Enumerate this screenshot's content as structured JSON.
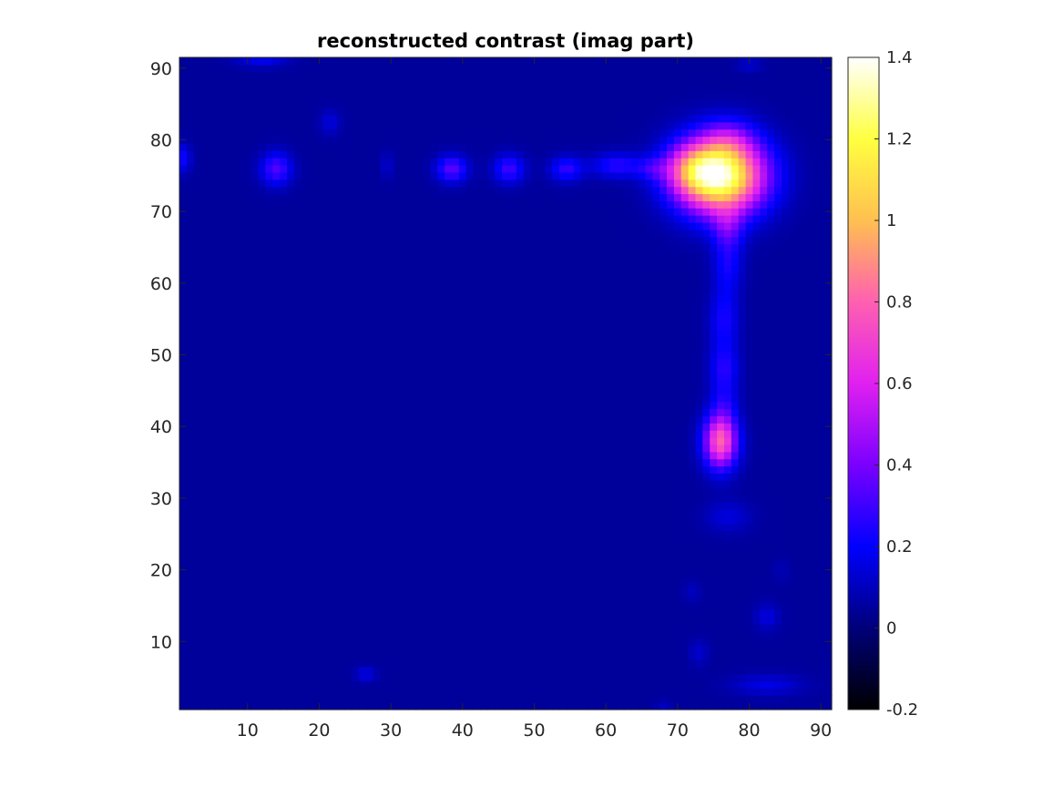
{
  "chart_data": {
    "type": "heatmap",
    "title": "reconstructed contrast (imag part)",
    "xlabel": "",
    "ylabel": "",
    "grid": false,
    "xlim": [
      0.5,
      91.5
    ],
    "ylim": [
      0.5,
      91.5
    ],
    "x_ticks": [
      10,
      20,
      30,
      40,
      50,
      60,
      70,
      80,
      90
    ],
    "y_ticks": [
      10,
      20,
      30,
      40,
      50,
      60,
      70,
      80,
      90
    ],
    "grid_size": 91,
    "colormap": "gnuplot2",
    "colormap_stops": [
      {
        "v": -0.2,
        "color": "#000000"
      },
      {
        "v": 0.0,
        "color": "#00007a"
      },
      {
        "v": 0.2,
        "color": "#0000ff"
      },
      {
        "v": 0.4,
        "color": "#7a00ff"
      },
      {
        "v": 0.6,
        "color": "#e020f0"
      },
      {
        "v": 0.8,
        "color": "#ff60b0"
      },
      {
        "v": 1.0,
        "color": "#ffc050"
      },
      {
        "v": 1.2,
        "color": "#ffff40"
      },
      {
        "v": 1.4,
        "color": "#ffffff"
      }
    ],
    "colorbar": {
      "limits": [
        -0.2,
        1.4
      ],
      "ticks": [
        -0.2,
        0,
        0.2,
        0.4,
        0.6,
        0.8,
        1,
        1.2,
        1.4
      ],
      "tick_labels": [
        "-0.2",
        "0",
        "0.2",
        "0.4",
        "0.6",
        "0.8",
        "1",
        "1.2",
        "1.4"
      ],
      "location": "right"
    },
    "background_value": 0.05,
    "features": [
      {
        "x": 76,
        "y": 75,
        "sx": 4.2,
        "sy": 3.6,
        "v": 1.3
      },
      {
        "x": 72,
        "y": 76,
        "sx": 2.6,
        "sy": 2.3,
        "v": 0.35
      },
      {
        "x": 77,
        "y": 80,
        "sx": 2.5,
        "sy": 2.0,
        "v": 0.2
      },
      {
        "x": 76,
        "y": 38,
        "sx": 1.6,
        "sy": 2.6,
        "v": 0.75
      },
      {
        "x": 76.5,
        "y": 48,
        "sx": 1.4,
        "sy": 2.5,
        "v": 0.2
      },
      {
        "x": 76.5,
        "y": 55,
        "sx": 1.4,
        "sy": 3.0,
        "v": 0.18
      },
      {
        "x": 77,
        "y": 63,
        "sx": 1.4,
        "sy": 3.0,
        "v": 0.18
      },
      {
        "x": 77,
        "y": 68,
        "sx": 1.5,
        "sy": 2.0,
        "v": 0.2
      },
      {
        "x": 76.5,
        "y": 43,
        "sx": 1.3,
        "sy": 2.0,
        "v": 0.12
      },
      {
        "x": 77,
        "y": 27.5,
        "sx": 2.2,
        "sy": 1.5,
        "v": 0.1
      },
      {
        "x": 14,
        "y": 76,
        "sx": 1.5,
        "sy": 1.6,
        "v": 0.28
      },
      {
        "x": 38.5,
        "y": 76,
        "sx": 1.5,
        "sy": 1.3,
        "v": 0.3
      },
      {
        "x": 46.5,
        "y": 76,
        "sx": 1.5,
        "sy": 1.4,
        "v": 0.25
      },
      {
        "x": 54.5,
        "y": 76,
        "sx": 1.6,
        "sy": 1.2,
        "v": 0.23
      },
      {
        "x": 61.5,
        "y": 76.5,
        "sx": 2.4,
        "sy": 1.2,
        "v": 0.21
      },
      {
        "x": 66.5,
        "y": 76,
        "sx": 1.6,
        "sy": 1.1,
        "v": 0.15
      },
      {
        "x": 0.8,
        "y": 77.5,
        "sx": 0.9,
        "sy": 1.4,
        "v": 0.18
      },
      {
        "x": 29.5,
        "y": 76.5,
        "sx": 0.6,
        "sy": 1.3,
        "v": 0.08
      },
      {
        "x": 21.5,
        "y": 82.5,
        "sx": 1.0,
        "sy": 1.2,
        "v": 0.1
      },
      {
        "x": 12,
        "y": 91,
        "sx": 2.5,
        "sy": 0.6,
        "v": 0.12
      },
      {
        "x": 80,
        "y": 90.5,
        "sx": 1.2,
        "sy": 0.7,
        "v": 0.08
      },
      {
        "x": 26.5,
        "y": 5.5,
        "sx": 1.0,
        "sy": 0.7,
        "v": 0.12
      },
      {
        "x": 73,
        "y": 8.5,
        "sx": 0.9,
        "sy": 1.2,
        "v": 0.08
      },
      {
        "x": 72,
        "y": 17,
        "sx": 0.8,
        "sy": 1.0,
        "v": 0.06
      },
      {
        "x": 82.5,
        "y": 13.5,
        "sx": 1.2,
        "sy": 1.3,
        "v": 0.1
      },
      {
        "x": 82.5,
        "y": 4,
        "sx": 3.5,
        "sy": 1.0,
        "v": 0.11
      },
      {
        "x": 68,
        "y": 1,
        "sx": 0.8,
        "sy": 0.6,
        "v": 0.06
      },
      {
        "x": 84.5,
        "y": 20,
        "sx": 0.8,
        "sy": 1.2,
        "v": 0.04
      }
    ]
  }
}
